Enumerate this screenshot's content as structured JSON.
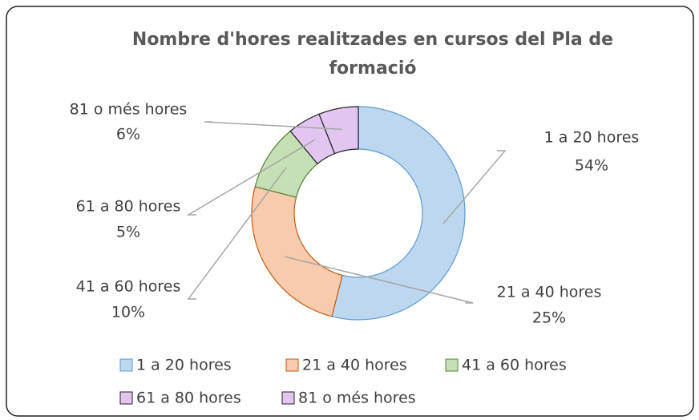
{
  "chart_data": {
    "type": "donut",
    "title": "Nombre d'hores realitzades en cursos del Pla de formació",
    "categories": [
      "1 a 20 hores",
      "21 a 40 hores",
      "41 a 60 hores",
      "61 a 80 hores",
      "81 o més hores"
    ],
    "values": [
      54,
      25,
      10,
      5,
      6
    ],
    "value_labels": [
      "54%",
      "25%",
      "10%",
      "5%",
      "6%"
    ],
    "colors": [
      "#bdd7ee",
      "#f8cbad",
      "#c5e0b4",
      "#e2c6f0",
      "#e2c6f0"
    ],
    "legend": "bottom"
  }
}
